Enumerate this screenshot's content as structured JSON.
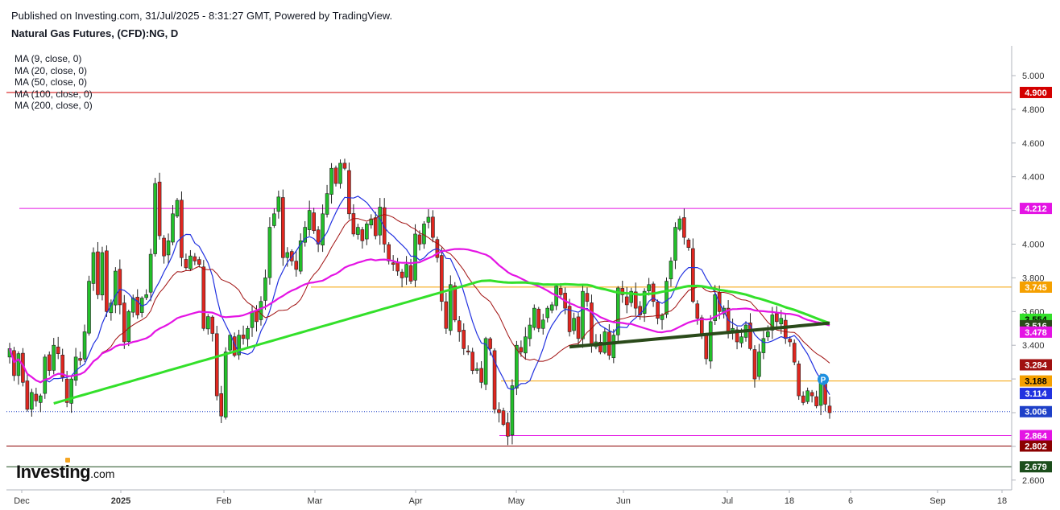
{
  "header": {
    "published": "Published on Investing.com, 31/Jul/2025 - 8:31:27 GMT, Powered by TradingView.",
    "title": "Natural Gas Futures, (CFD):NG, D"
  },
  "legend": [
    "MA (9, close, 0)",
    "MA (20, close, 0)",
    "MA (50, close, 0)",
    "MA (100, close, 0)",
    "MA (200, close, 0)"
  ],
  "logo": {
    "brand": "Investing",
    "domain": ".com"
  },
  "colors": {
    "up": "#22c02a",
    "down": "#e0261f",
    "ma9": "#2232e0",
    "ma20": "#a01010",
    "ma50": "#e414e4",
    "ma100": "#33e02a",
    "ma200": "#2a4a1a",
    "red_level": "#d40000",
    "magenta_level": "#e414e4",
    "orange_level": "#f5a000",
    "dark_red_level": "#8b0000",
    "dark_green_level": "#1b4d1b"
  },
  "chart_data": {
    "type": "candlestick",
    "x_ticks": [
      "Dec",
      "2025",
      "Feb",
      "Mar",
      "Apr",
      "May",
      "Jun",
      "Jul",
      "18",
      "6",
      "Sep",
      "18"
    ],
    "y_ticks": [
      "5.000",
      "4.800",
      "4.600",
      "4.400",
      "4.200",
      "4.000",
      "3.800",
      "3.600",
      "3.400",
      "3.200",
      "3.000",
      "2.800",
      "2.600"
    ],
    "ylim": [
      2.55,
      5.13
    ],
    "horizontal_levels": [
      {
        "value": 4.9,
        "label": "4.900",
        "color": "red_level",
        "style": "solid"
      },
      {
        "value": 4.212,
        "label": "4.212",
        "color": "magenta_level",
        "style": "solid"
      },
      {
        "value": 3.745,
        "label": "3.745",
        "color": "orange_level",
        "style": "solid"
      },
      {
        "value": 3.188,
        "label": "3.188",
        "color": "orange_level",
        "style": "solid"
      },
      {
        "value": 2.864,
        "label": "2.864",
        "color": "magenta_level",
        "style": "solid"
      },
      {
        "value": 2.802,
        "label": "2.802",
        "color": "dark_red_level",
        "style": "solid"
      },
      {
        "value": 2.679,
        "label": "2.679",
        "color": "dark_green_level",
        "style": "solid"
      },
      {
        "value": 3.006,
        "label": "3.006",
        "color": "ma9",
        "style": "dotted"
      }
    ],
    "price_labels": [
      {
        "value": 3.554,
        "label": "3.554",
        "color": "ma100"
      },
      {
        "value": 3.516,
        "label": "3.516",
        "color": "ma200"
      },
      {
        "value": 3.478,
        "label": "3.478",
        "color": "ma50"
      },
      {
        "value": 3.284,
        "label": "3.284",
        "color": "ma20"
      },
      {
        "value": 3.114,
        "label": "3.114",
        "color": "ma9"
      }
    ],
    "marker": {
      "label": "P",
      "value": 3.188
    },
    "closes": [
      3.38,
      3.22,
      3.35,
      3.18,
      3.02,
      3.12,
      3.07,
      3.1,
      3.33,
      3.25,
      3.4,
      3.35,
      3.21,
      3.06,
      3.2,
      3.33,
      3.31,
      3.48,
      3.78,
      3.95,
      3.7,
      3.95,
      3.6,
      3.65,
      3.84,
      3.64,
      3.42,
      3.6,
      3.68,
      3.58,
      3.68,
      3.7,
      3.94,
      4.36,
      4.05,
      3.93,
      4.02,
      4.18,
      4.26,
      3.92,
      3.86,
      3.93,
      3.9,
      3.88,
      3.5,
      3.57,
      3.47,
      3.1,
      2.98,
      3.36,
      3.46,
      3.34,
      3.46,
      3.44,
      3.5,
      3.6,
      3.54,
      3.66,
      3.8,
      4.1,
      4.18,
      4.28,
      3.92,
      3.95,
      3.9,
      3.85,
      4.02,
      4.1,
      4.2,
      4.08,
      4.0,
      4.18,
      4.3,
      4.45,
      4.36,
      4.48,
      4.45,
      4.18,
      4.06,
      4.1,
      4.02,
      4.12,
      4.15,
      4.05,
      4.22,
      4.0,
      3.9,
      3.88,
      3.84,
      3.8,
      3.88,
      3.78,
      4.06,
      4.0,
      4.12,
      4.16,
      4.04,
      3.92,
      3.66,
      3.5,
      3.76,
      3.55,
      3.48,
      3.38,
      3.36,
      3.25,
      3.26,
      3.18,
      3.44,
      3.38,
      3.02,
      3.0,
      2.93,
      2.86,
      3.16,
      3.4,
      3.36,
      3.45,
      3.52,
      3.62,
      3.5,
      3.55,
      3.62,
      3.64,
      3.75,
      3.7,
      3.62,
      3.48,
      3.56,
      3.44,
      3.72,
      3.66,
      3.4,
      3.42,
      3.36,
      3.48,
      3.34,
      3.46,
      3.74,
      3.7,
      3.64,
      3.72,
      3.62,
      3.58,
      3.72,
      3.76,
      3.66,
      3.56,
      3.58,
      3.78,
      3.9,
      4.1,
      4.15,
      4.04,
      3.98,
      3.66,
      3.56,
      3.46,
      3.32,
      3.54,
      3.7,
      3.6,
      3.62,
      3.48,
      3.5,
      3.42,
      3.45,
      3.52,
      3.38,
      3.2,
      3.36,
      3.44,
      3.48,
      3.58,
      3.54,
      3.56,
      3.44,
      3.42,
      3.3,
      3.1,
      3.06,
      3.13,
      3.1,
      3.04,
      3.18,
      3.05,
      3.0
    ]
  }
}
